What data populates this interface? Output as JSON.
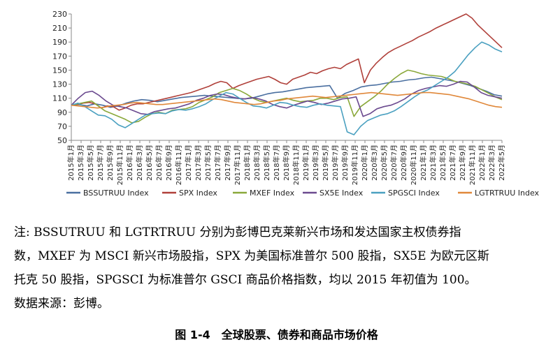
{
  "chart_data": {
    "type": "line",
    "title": "",
    "xlabel": "",
    "ylabel": "",
    "ylim": [
      50,
      230
    ],
    "yticks": [
      50,
      70,
      90,
      110,
      130,
      150,
      170,
      190,
      210,
      230
    ],
    "grid": false,
    "legend_position": "bottom",
    "x_tick_labels": [
      "2015年1月",
      "2015年3月",
      "2015年5月",
      "2015年7月",
      "2015年9月",
      "2015年11月",
      "2016年1月",
      "2016年3月",
      "2016年5月",
      "2016年7月",
      "2016年9月",
      "2016年11月",
      "2017年1月",
      "2017年3月",
      "2017年5月",
      "2017年7月",
      "2017年9月",
      "2017年11月",
      "2018年1月",
      "2018年3月",
      "2018年5月",
      "2018年7月",
      "2018年9月",
      "2018年11月",
      "2019年1月",
      "2019年3月",
      "2019年5月",
      "2019年7月",
      "2019年9月",
      "2019年11月",
      "2020年1月",
      "2020年3月",
      "2020年5月",
      "2020年7月",
      "2020年9月",
      "2020年11月",
      "2021年1月",
      "2021年3月",
      "2021年5月",
      "2021年7月",
      "2021年9月",
      "2021年11月",
      "2022年1月",
      "2022年3月",
      "2022年5月"
    ],
    "series": [
      {
        "name": "BSSUTRUU Index",
        "color": "#4a6fa0",
        "values": [
          100,
          101,
          99,
          102,
          100,
          97,
          99,
          103,
          106,
          108,
          107,
          105,
          107,
          109,
          111,
          112,
          113,
          114,
          113,
          112,
          111,
          110,
          109,
          110,
          113,
          116,
          118,
          119,
          121,
          123,
          125,
          126,
          127,
          128,
          110,
          117,
          121,
          126,
          128,
          129,
          131,
          133,
          134,
          136,
          137,
          139,
          140,
          138,
          136,
          134,
          131,
          128,
          124,
          120,
          115,
          113
        ]
      },
      {
        "name": "SPX Index",
        "color": "#b0403a",
        "values": [
          100,
          101,
          103,
          104,
          102,
          96,
          99,
          98,
          93,
          96,
          100,
          102,
          102,
          104,
          106,
          108,
          110,
          112,
          114,
          116,
          118,
          121,
          124,
          127,
          131,
          134,
          132,
          124,
          128,
          131,
          134,
          137,
          139,
          141,
          137,
          132,
          130,
          137,
          140,
          143,
          147,
          145,
          149,
          152,
          154,
          152,
          158,
          162,
          166,
          132,
          150,
          160,
          168,
          175,
          180,
          184,
          188,
          192,
          197,
          201,
          205,
          210,
          214,
          218,
          222,
          226,
          230,
          224,
          214,
          206,
          198,
          190,
          182
        ]
      },
      {
        "name": "MXEF Index",
        "color": "#8aa83a",
        "values": [
          100,
          102,
          104,
          106,
          99,
          92,
          88,
          84,
          80,
          75,
          77,
          83,
          88,
          90,
          88,
          93,
          94,
          95,
          98,
          104,
          108,
          112,
          118,
          121,
          124,
          121,
          116,
          110,
          106,
          104,
          106,
          108,
          110,
          107,
          105,
          106,
          107,
          110,
          110,
          108,
          111,
          112,
          84,
          98,
          105,
          112,
          120,
          130,
          138,
          145,
          150,
          148,
          145,
          143,
          142,
          141,
          138,
          134,
          132,
          130,
          127,
          122,
          117,
          112,
          108
        ]
      },
      {
        "name": "SX5E Index",
        "color": "#6b4a8f",
        "values": [
          100,
          110,
          118,
          120,
          114,
          106,
          100,
          98,
          96,
          92,
          88,
          87,
          91,
          93,
          95,
          96,
          99,
          102,
          107,
          110,
          114,
          116,
          115,
          112,
          110,
          109,
          111,
          109,
          106,
          101,
          98,
          96,
          100,
          103,
          106,
          104,
          101,
          103,
          106,
          109,
          110,
          112,
          84,
          88,
          95,
          98,
          100,
          104,
          109,
          116,
          121,
          124,
          126,
          128,
          127,
          130,
          134,
          133,
          126,
          118,
          114,
          112,
          110
        ]
      },
      {
        "name": "SPGSCI Index",
        "color": "#4aa0c0",
        "values": [
          100,
          103,
          98,
          92,
          86,
          85,
          80,
          72,
          68,
          74,
          80,
          86,
          88,
          89,
          88,
          92,
          94,
          93,
          95,
          98,
          102,
          108,
          113,
          118,
          116,
          110,
          104,
          99,
          98,
          96,
          100,
          104,
          103,
          100,
          98,
          97,
          100,
          102,
          100,
          99,
          98,
          62,
          58,
          70,
          78,
          82,
          86,
          88,
          92,
          98,
          105,
          112,
          118,
          122,
          128,
          134,
          140,
          148,
          160,
          172,
          182,
          190,
          186,
          180,
          176
        ]
      },
      {
        "name": "LGTRTRUU Index",
        "color": "#e0883a",
        "values": [
          100,
          99,
          98,
          97,
          96,
          97,
          99,
          100,
          101,
          103,
          104,
          103,
          102,
          101,
          101,
          102,
          103,
          104,
          105,
          106,
          107,
          108,
          109,
          108,
          106,
          104,
          103,
          102,
          101,
          102,
          104,
          106,
          107,
          109,
          110,
          111,
          112,
          113,
          112,
          111,
          112,
          113,
          114,
          115,
          116,
          117,
          118,
          117,
          116,
          115,
          114,
          115,
          116,
          117,
          118,
          118,
          117,
          116,
          115,
          113,
          111,
          109,
          106,
          103,
          100,
          98,
          97
        ]
      }
    ]
  },
  "notes": [
    "注: BSSUTRUU 和 LGTRTRUU 分别为彭博巴克莱新兴市场和发达国家主权债券指",
    "数，MXEF 为 MSCI 新兴市场股指，SPX 为美国标准普尔 500 股指，SX5E 为欧元区斯",
    "托克 50 股指，SPGSCI 为标准普尔 GSCI 商品价格指数，均以 2015 年初值为 100。",
    "数据来源：彭博。"
  ],
  "caption": "图 1-4　全球股票、债券和商品市场价格"
}
